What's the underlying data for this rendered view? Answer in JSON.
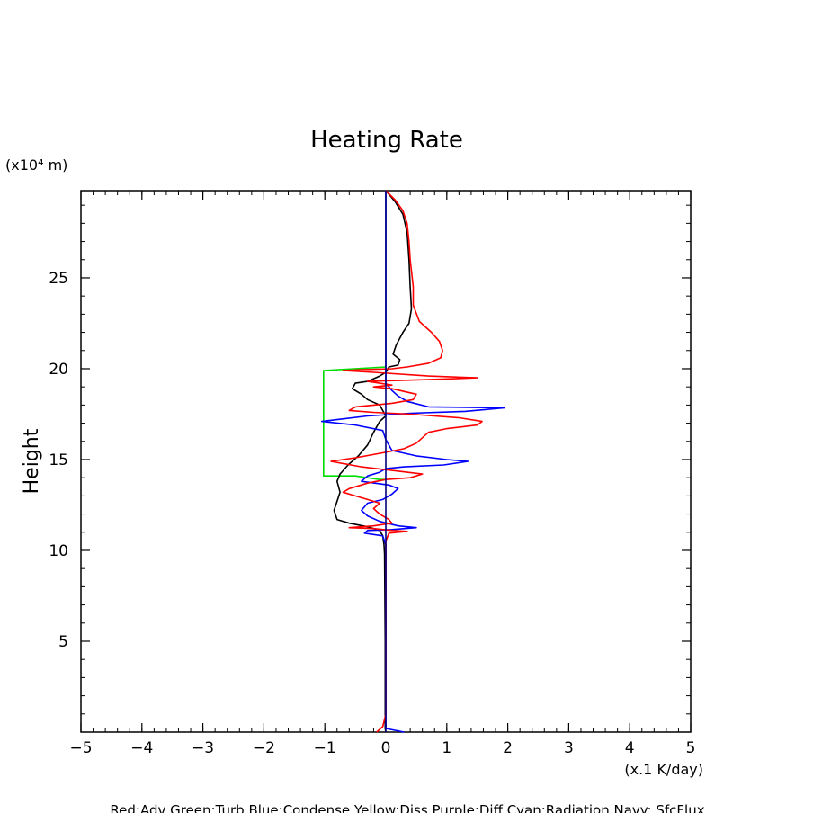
{
  "chart_data": {
    "type": "line",
    "title": "Heating Rate",
    "xlabel": "(x.1 K/day)",
    "ylabel": "Height",
    "y_unit_label": "(x10⁴ m)",
    "xlim": [
      -5,
      5
    ],
    "ylim": [
      0,
      29.8
    ],
    "x_ticks": [
      {
        "value": -5,
        "label": "−5"
      },
      {
        "value": -4,
        "label": "−4"
      },
      {
        "value": -3,
        "label": "−3"
      },
      {
        "value": -2,
        "label": "−2"
      },
      {
        "value": -1,
        "label": "−1"
      },
      {
        "value": 0,
        "label": "0"
      },
      {
        "value": 1,
        "label": "1"
      },
      {
        "value": 2,
        "label": "2"
      },
      {
        "value": 3,
        "label": "3"
      },
      {
        "value": 4,
        "label": "4"
      },
      {
        "value": 5,
        "label": "5"
      }
    ],
    "y_ticks": [
      {
        "value": 5,
        "label": "5"
      },
      {
        "value": 10,
        "label": "10"
      },
      {
        "value": 15,
        "label": "15"
      },
      {
        "value": 20,
        "label": "20"
      },
      {
        "value": 25,
        "label": "25"
      }
    ],
    "legend_text": "Red:Adv  Green:Turb  Blue:Condense  Yellow:Diss  Purple:Diff  Cyan:Radiation  Navy: SfcFlux",
    "legend_position": "bottom",
    "grid": false,
    "series": [
      {
        "name": "Green:Turb",
        "color": "#00dd00",
        "points": [
          [
            0,
            20.1
          ],
          [
            -1.02,
            19.9
          ],
          [
            -1.02,
            14.1
          ],
          [
            -0.5,
            14.1
          ],
          [
            -0.1,
            13.9
          ],
          [
            0,
            13.9
          ]
        ]
      },
      {
        "name": "Black",
        "color": "#000000",
        "points": [
          [
            0,
            29.8
          ],
          [
            0.15,
            29.2
          ],
          [
            0.28,
            28.5
          ],
          [
            0.35,
            27.5
          ],
          [
            0.38,
            26
          ],
          [
            0.4,
            24.5
          ],
          [
            0.42,
            23.3
          ],
          [
            0.38,
            22.5
          ],
          [
            0.28,
            22
          ],
          [
            0.17,
            21.3
          ],
          [
            0.12,
            20.8
          ],
          [
            0.23,
            20.5
          ],
          [
            0.2,
            20.2
          ],
          [
            0.05,
            20.1
          ],
          [
            0,
            19.8
          ],
          [
            -0.1,
            19.6
          ],
          [
            -0.3,
            19.3
          ],
          [
            -0.5,
            19.2
          ],
          [
            -0.55,
            18.9
          ],
          [
            -0.4,
            18.6
          ],
          [
            -0.3,
            18.3
          ],
          [
            -0.1,
            18
          ],
          [
            0,
            17.4
          ],
          [
            -0.1,
            17.1
          ],
          [
            -0.2,
            16.5
          ],
          [
            -0.3,
            15.8
          ],
          [
            -0.45,
            15.2
          ],
          [
            -0.62,
            14.7
          ],
          [
            -0.75,
            14.2
          ],
          [
            -0.8,
            13.8
          ],
          [
            -0.75,
            13.2
          ],
          [
            -0.8,
            12.7
          ],
          [
            -0.85,
            12.2
          ],
          [
            -0.8,
            11.7
          ],
          [
            -0.6,
            11.5
          ],
          [
            -0.3,
            11.3
          ],
          [
            -0.1,
            11.1
          ],
          [
            -0.05,
            10.8
          ],
          [
            -0.03,
            10.3
          ],
          [
            -0.02,
            9.8
          ],
          [
            -0.01,
            5
          ],
          [
            -0.01,
            0.2
          ],
          [
            0,
            0
          ]
        ]
      },
      {
        "name": "Blue:Condense",
        "color": "#0000ff",
        "points": [
          [
            0,
            29.8
          ],
          [
            0,
            20.2
          ],
          [
            0,
            19.2
          ],
          [
            0.1,
            18.8
          ],
          [
            0.2,
            18.5
          ],
          [
            0.35,
            18.2
          ],
          [
            0.7,
            17.9
          ],
          [
            1.95,
            17.85
          ],
          [
            1.3,
            17.65
          ],
          [
            0.4,
            17.55
          ],
          [
            -0.3,
            17.4
          ],
          [
            -1.05,
            17.1
          ],
          [
            -0.5,
            16.9
          ],
          [
            -0.05,
            16.6
          ],
          [
            0,
            16.1
          ],
          [
            0.1,
            15.5
          ],
          [
            0.5,
            15.2
          ],
          [
            1,
            15
          ],
          [
            1.35,
            14.9
          ],
          [
            0.95,
            14.7
          ],
          [
            0.3,
            14.6
          ],
          [
            0,
            14.5
          ],
          [
            -0.1,
            14.3
          ],
          [
            -0.3,
            14.1
          ],
          [
            -0.4,
            13.8
          ],
          [
            0.05,
            13.6
          ],
          [
            0.2,
            13.4
          ],
          [
            0.1,
            13.1
          ],
          [
            -0.05,
            12.8
          ],
          [
            -0.3,
            12.6
          ],
          [
            -0.4,
            12.2
          ],
          [
            -0.3,
            11.9
          ],
          [
            -0.1,
            11.6
          ],
          [
            0.2,
            11.35
          ],
          [
            0.5,
            11.25
          ],
          [
            0.1,
            11.15
          ],
          [
            -0.3,
            11.1
          ],
          [
            -0.35,
            10.95
          ],
          [
            -0.05,
            10.8
          ],
          [
            0,
            10.3
          ],
          [
            0,
            5
          ],
          [
            0,
            0.2
          ],
          [
            0.3,
            0
          ]
        ]
      },
      {
        "name": "Red:Adv",
        "color": "#ff0000",
        "points": [
          [
            0,
            29.8
          ],
          [
            0.15,
            29.3
          ],
          [
            0.28,
            28.7
          ],
          [
            0.35,
            28
          ],
          [
            0.38,
            27
          ],
          [
            0.4,
            26
          ],
          [
            0.45,
            24.5
          ],
          [
            0.45,
            23.5
          ],
          [
            0.55,
            22.6
          ],
          [
            0.75,
            22
          ],
          [
            0.88,
            21.5
          ],
          [
            0.93,
            21
          ],
          [
            0.9,
            20.6
          ],
          [
            0.7,
            20.3
          ],
          [
            0.35,
            20.1
          ],
          [
            0.1,
            20
          ],
          [
            -0.4,
            19.95
          ],
          [
            -0.7,
            19.9
          ],
          [
            -0.2,
            19.8
          ],
          [
            0.7,
            19.6
          ],
          [
            1.5,
            19.5
          ],
          [
            0.7,
            19.4
          ],
          [
            -0.3,
            19.3
          ],
          [
            -0.1,
            19.2
          ],
          [
            0.1,
            19.1
          ],
          [
            -0.2,
            19
          ],
          [
            0.1,
            18.9
          ],
          [
            0.5,
            18.6
          ],
          [
            0.45,
            18.3
          ],
          [
            0.1,
            18.1
          ],
          [
            -0.5,
            17.9
          ],
          [
            -0.6,
            17.7
          ],
          [
            -0.2,
            17.6
          ],
          [
            0.4,
            17.5
          ],
          [
            1.2,
            17.3
          ],
          [
            1.58,
            17.1
          ],
          [
            1.5,
            16.9
          ],
          [
            1,
            16.7
          ],
          [
            0.7,
            16.5
          ],
          [
            0.6,
            16.2
          ],
          [
            0.5,
            15.9
          ],
          [
            0.3,
            15.6
          ],
          [
            0,
            15.4
          ],
          [
            -0.5,
            15.1
          ],
          [
            -0.9,
            14.9
          ],
          [
            -0.4,
            14.6
          ],
          [
            0.1,
            14.4
          ],
          [
            0.6,
            14.2
          ],
          [
            0.4,
            14
          ],
          [
            0,
            13.9
          ],
          [
            -0.3,
            13.7
          ],
          [
            -0.6,
            13.4
          ],
          [
            -0.7,
            13.2
          ],
          [
            -0.5,
            13
          ],
          [
            -0.3,
            12.8
          ],
          [
            -0.1,
            12.6
          ],
          [
            -0.2,
            12.3
          ],
          [
            -0.1,
            12
          ],
          [
            0.05,
            11.7
          ],
          [
            0.1,
            11.5
          ],
          [
            -0.2,
            11.35
          ],
          [
            -0.6,
            11.25
          ],
          [
            -0.2,
            11.2
          ],
          [
            0.1,
            11.1
          ],
          [
            0.35,
            11.05
          ],
          [
            0.05,
            10.95
          ],
          [
            0,
            10.5
          ],
          [
            0,
            7.5
          ],
          [
            0,
            5
          ],
          [
            0,
            1
          ],
          [
            -0.05,
            0.3
          ],
          [
            -0.15,
            0
          ]
        ]
      },
      {
        "name": "Navy: SfcFlux",
        "color": "#000080",
        "points": [
          [
            0,
            0
          ],
          [
            0,
            29.8
          ]
        ]
      }
    ]
  }
}
